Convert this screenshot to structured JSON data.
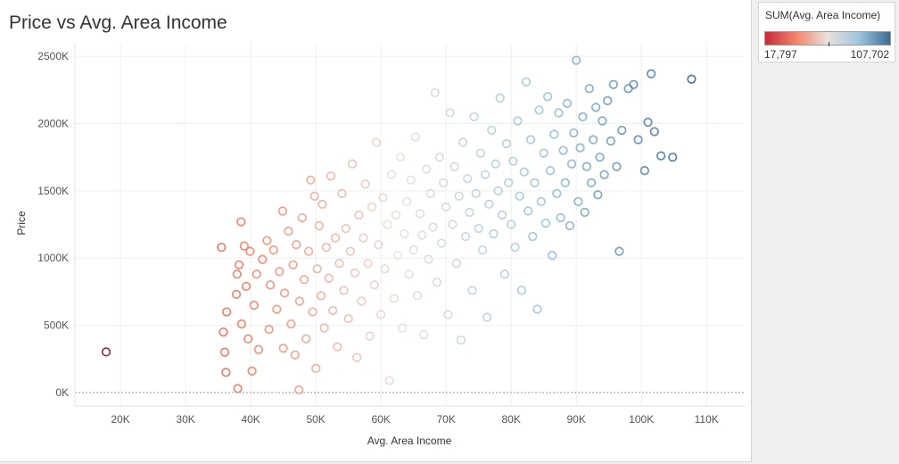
{
  "title": "Price vs Avg. Area Income",
  "legend": {
    "title": "SUM(Avg. Area Income)",
    "min_label": "17,797",
    "max_label": "107,702",
    "colors": [
      "#c52a3a",
      "#f4846b",
      "#e9e2dc",
      "#9cc5de",
      "#3c6b94"
    ]
  },
  "chart_data": {
    "type": "scatter",
    "xlabel": "Avg. Area Income",
    "ylabel": "Price",
    "x_ticks": [
      "20K",
      "30K",
      "40K",
      "50K",
      "60K",
      "70K",
      "80K",
      "90K",
      "100K",
      "110K"
    ],
    "x_tick_values": [
      20000,
      30000,
      40000,
      50000,
      60000,
      70000,
      80000,
      90000,
      100000,
      110000
    ],
    "y_ticks": [
      "0K",
      "500K",
      "1000K",
      "1500K",
      "2000K",
      "2500K"
    ],
    "y_tick_values": [
      0,
      500000,
      1000000,
      1500000,
      2000000,
      2500000
    ],
    "xlim": [
      13000,
      116000
    ],
    "ylim": [
      -100000,
      2600000
    ],
    "color_range": [
      17797,
      107702
    ],
    "grid": true,
    "marker": "hollow-circle",
    "points": [
      [
        17797,
        302000
      ],
      [
        35500,
        1080000
      ],
      [
        35800,
        450000
      ],
      [
        36000,
        300000
      ],
      [
        36200,
        150000
      ],
      [
        36300,
        600000
      ],
      [
        37800,
        730000
      ],
      [
        37900,
        880000
      ],
      [
        38000,
        30000
      ],
      [
        38200,
        950000
      ],
      [
        38500,
        1270000
      ],
      [
        38600,
        510000
      ],
      [
        39000,
        1090000
      ],
      [
        39300,
        790000
      ],
      [
        39600,
        400000
      ],
      [
        39900,
        1050000
      ],
      [
        40200,
        160000
      ],
      [
        40500,
        650000
      ],
      [
        40900,
        880000
      ],
      [
        41200,
        320000
      ],
      [
        41800,
        990000
      ],
      [
        42500,
        1130000
      ],
      [
        42800,
        470000
      ],
      [
        43000,
        800000
      ],
      [
        43500,
        1060000
      ],
      [
        44000,
        620000
      ],
      [
        44400,
        900000
      ],
      [
        44900,
        1350000
      ],
      [
        45000,
        330000
      ],
      [
        45200,
        740000
      ],
      [
        45800,
        1200000
      ],
      [
        46200,
        510000
      ],
      [
        46500,
        950000
      ],
      [
        46800,
        280000
      ],
      [
        47000,
        1100000
      ],
      [
        47400,
        20000
      ],
      [
        47500,
        680000
      ],
      [
        47900,
        1300000
      ],
      [
        48200,
        840000
      ],
      [
        48500,
        400000
      ],
      [
        48900,
        1050000
      ],
      [
        49200,
        1580000
      ],
      [
        49500,
        600000
      ],
      [
        49800,
        1460000
      ],
      [
        50000,
        180000
      ],
      [
        50200,
        920000
      ],
      [
        50500,
        1240000
      ],
      [
        50800,
        720000
      ],
      [
        51000,
        1400000
      ],
      [
        51300,
        480000
      ],
      [
        51600,
        1080000
      ],
      [
        52000,
        850000
      ],
      [
        52300,
        1610000
      ],
      [
        52600,
        610000
      ],
      [
        53000,
        1150000
      ],
      [
        53300,
        340000
      ],
      [
        53600,
        960000
      ],
      [
        54000,
        1480000
      ],
      [
        54300,
        760000
      ],
      [
        54600,
        1220000
      ],
      [
        55000,
        550000
      ],
      [
        55300,
        1050000
      ],
      [
        55600,
        1700000
      ],
      [
        56000,
        890000
      ],
      [
        56300,
        260000
      ],
      [
        56600,
        1320000
      ],
      [
        57000,
        680000
      ],
      [
        57300,
        1150000
      ],
      [
        57600,
        1550000
      ],
      [
        58000,
        960000
      ],
      [
        58300,
        420000
      ],
      [
        58600,
        1380000
      ],
      [
        59000,
        800000
      ],
      [
        59300,
        1860000
      ],
      [
        59600,
        1100000
      ],
      [
        60000,
        580000
      ],
      [
        60300,
        1450000
      ],
      [
        60600,
        920000
      ],
      [
        61000,
        1250000
      ],
      [
        61300,
        90000
      ],
      [
        61600,
        1620000
      ],
      [
        62000,
        700000
      ],
      [
        62300,
        1320000
      ],
      [
        62600,
        1020000
      ],
      [
        63000,
        1750000
      ],
      [
        63300,
        480000
      ],
      [
        63600,
        1180000
      ],
      [
        64000,
        1420000
      ],
      [
        64300,
        880000
      ],
      [
        64600,
        1580000
      ],
      [
        65000,
        1060000
      ],
      [
        65300,
        1900000
      ],
      [
        65600,
        720000
      ],
      [
        66000,
        1330000
      ],
      [
        66300,
        1170000
      ],
      [
        66600,
        430000
      ],
      [
        67000,
        1660000
      ],
      [
        67300,
        990000
      ],
      [
        67600,
        1480000
      ],
      [
        68000,
        1230000
      ],
      [
        68300,
        2230000
      ],
      [
        68600,
        820000
      ],
      [
        69000,
        1750000
      ],
      [
        69300,
        1110000
      ],
      [
        69600,
        1560000
      ],
      [
        70000,
        1380000
      ],
      [
        70300,
        580000
      ],
      [
        70600,
        2080000
      ],
      [
        71000,
        1250000
      ],
      [
        71300,
        1680000
      ],
      [
        71600,
        960000
      ],
      [
        72000,
        1460000
      ],
      [
        72300,
        390000
      ],
      [
        72600,
        1860000
      ],
      [
        73000,
        1160000
      ],
      [
        73300,
        1590000
      ],
      [
        73600,
        1340000
      ],
      [
        74000,
        760000
      ],
      [
        74300,
        2050000
      ],
      [
        74600,
        1480000
      ],
      [
        75000,
        1220000
      ],
      [
        75300,
        1780000
      ],
      [
        75600,
        1060000
      ],
      [
        76000,
        1620000
      ],
      [
        76300,
        560000
      ],
      [
        76600,
        1400000
      ],
      [
        77000,
        1950000
      ],
      [
        77300,
        1180000
      ],
      [
        77600,
        1700000
      ],
      [
        78000,
        1500000
      ],
      [
        78300,
        2190000
      ],
      [
        78600,
        1320000
      ],
      [
        79000,
        880000
      ],
      [
        79300,
        1850000
      ],
      [
        79600,
        1560000
      ],
      [
        80000,
        1250000
      ],
      [
        80300,
        1720000
      ],
      [
        80600,
        1080000
      ],
      [
        81000,
        2020000
      ],
      [
        81300,
        1460000
      ],
      [
        81600,
        760000
      ],
      [
        82000,
        1640000
      ],
      [
        82300,
        2310000
      ],
      [
        82600,
        1350000
      ],
      [
        83000,
        1880000
      ],
      [
        83300,
        1160000
      ],
      [
        83600,
        1560000
      ],
      [
        84000,
        620000
      ],
      [
        84300,
        2100000
      ],
      [
        84600,
        1420000
      ],
      [
        85000,
        1780000
      ],
      [
        85300,
        1260000
      ],
      [
        85600,
        2200000
      ],
      [
        86000,
        1650000
      ],
      [
        86300,
        1020000
      ],
      [
        86600,
        1920000
      ],
      [
        87000,
        1480000
      ],
      [
        87300,
        2080000
      ],
      [
        87600,
        1300000
      ],
      [
        88000,
        1800000
      ],
      [
        88300,
        1560000
      ],
      [
        88600,
        2150000
      ],
      [
        89000,
        1240000
      ],
      [
        89300,
        1700000
      ],
      [
        89600,
        1930000
      ],
      [
        90000,
        2470000
      ],
      [
        90300,
        1420000
      ],
      [
        90600,
        1820000
      ],
      [
        91000,
        2050000
      ],
      [
        91300,
        1340000
      ],
      [
        91600,
        1680000
      ],
      [
        92000,
        2260000
      ],
      [
        92300,
        1560000
      ],
      [
        92600,
        1880000
      ],
      [
        93000,
        2120000
      ],
      [
        93300,
        1470000
      ],
      [
        93600,
        1750000
      ],
      [
        94000,
        2020000
      ],
      [
        94300,
        1620000
      ],
      [
        94800,
        2170000
      ],
      [
        95300,
        1870000
      ],
      [
        95700,
        2290000
      ],
      [
        96200,
        1680000
      ],
      [
        96600,
        1050000
      ],
      [
        97000,
        1950000
      ],
      [
        98000,
        2260000
      ],
      [
        98800,
        2290000
      ],
      [
        99500,
        1880000
      ],
      [
        100500,
        1650000
      ],
      [
        101000,
        2010000
      ],
      [
        101500,
        2370000
      ],
      [
        102000,
        1940000
      ],
      [
        103000,
        1760000
      ],
      [
        104800,
        1750000
      ],
      [
        107702,
        2330000
      ]
    ]
  }
}
